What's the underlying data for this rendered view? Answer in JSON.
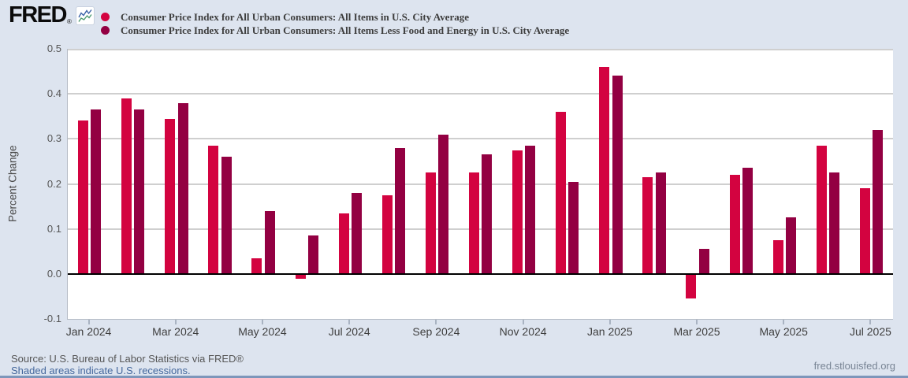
{
  "header": {
    "logo": {
      "text": "FRED",
      "registered": "®"
    },
    "legend": [
      {
        "label": "Consumer Price Index for All Urban Consumers: All Items in U.S. City Average",
        "color": "#d30340"
      },
      {
        "label": "Consumer Price Index for All Urban Consumers: All Items Less Food and Energy in U.S. City Average",
        "color": "#930042"
      }
    ]
  },
  "chart_data": {
    "type": "bar",
    "title": "",
    "xlabel": "",
    "ylabel": "Percent Change",
    "ylim": [
      -0.1,
      0.5
    ],
    "grid": true,
    "legend_position": "top",
    "y_tick_labels": [
      "0.5",
      "0.4",
      "0.3",
      "0.2",
      "0.1",
      "0.0",
      "-0.1"
    ],
    "x_tick_labels": [
      "Jan 2024",
      "Mar 2024",
      "May 2024",
      "Jul 2024",
      "Sep 2024",
      "Nov 2024",
      "Jan 2025",
      "Mar 2025",
      "May 2025",
      "Jul 2025"
    ],
    "categories": [
      "Jan 2024",
      "Feb 2024",
      "Mar 2024",
      "Apr 2024",
      "May 2024",
      "Jun 2024",
      "Jul 2024",
      "Aug 2024",
      "Sep 2024",
      "Oct 2024",
      "Nov 2024",
      "Dec 2024",
      "Jan 2025",
      "Feb 2025",
      "Mar 2025",
      "Apr 2025",
      "May 2025",
      "Jun 2025",
      "Jul 2025"
    ],
    "series": [
      {
        "name": "Consumer Price Index for All Urban Consumers: All Items in U.S. City Average",
        "key": "all-items",
        "color": "#d30340",
        "values": [
          0.34,
          0.39,
          0.345,
          0.285,
          0.035,
          -0.01,
          0.135,
          0.175,
          0.225,
          0.225,
          0.275,
          0.36,
          0.46,
          0.215,
          -0.055,
          0.22,
          0.075,
          0.285,
          0.19
        ]
      },
      {
        "name": "Consumer Price Index for All Urban Consumers: All Items Less Food and Energy in U.S. City Average",
        "key": "core",
        "color": "#930042",
        "values": [
          0.365,
          0.365,
          0.38,
          0.26,
          0.14,
          0.085,
          0.18,
          0.28,
          0.31,
          0.265,
          0.285,
          0.205,
          0.44,
          0.225,
          0.055,
          0.235,
          0.125,
          0.225,
          0.32
        ]
      }
    ]
  },
  "footer": {
    "source": "Source: U.S. Bureau of Labor Statistics via FRED®",
    "recession_note": "Shaded areas indicate U.S. recessions.",
    "site": "fred.stlouisfed.org"
  }
}
